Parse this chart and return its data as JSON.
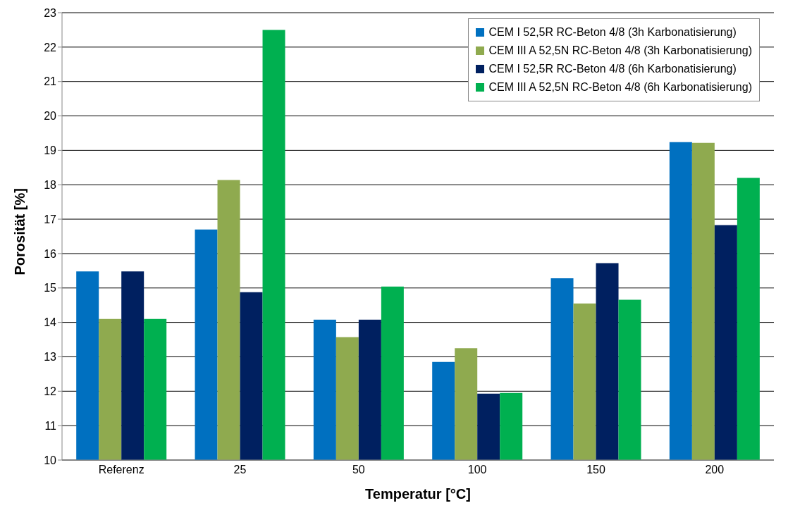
{
  "chart_data": {
    "type": "bar",
    "xlabel": "Temperatur [°C]",
    "ylabel": "Porosität [%]",
    "categories": [
      "Referenz",
      "25",
      "50",
      "100",
      "150",
      "200"
    ],
    "series": [
      {
        "name": "CEM I 52,5R RC-Beton 4/8 (3h Karbonatisierung)",
        "color": "#0070c0",
        "values": [
          15.48,
          16.7,
          14.08,
          12.85,
          15.28,
          19.24
        ]
      },
      {
        "name": "CEM III A 52,5N RC-Beton 4/8 (3h Karbonatisierung)",
        "color": "#8faa4f",
        "values": [
          14.1,
          18.14,
          13.57,
          13.25,
          14.55,
          19.22
        ]
      },
      {
        "name": "CEM I 52,5R RC-Beton 4/8 (6h Karbonatisierung)",
        "color": "#002060",
        "values": [
          15.48,
          14.88,
          14.08,
          11.93,
          15.72,
          16.83
        ]
      },
      {
        "name": "CEM III A 52,5N RC-Beton 4/8 (6h Karbonatisierung)",
        "color": "#00b050",
        "values": [
          14.1,
          22.5,
          15.04,
          11.95,
          14.66,
          18.2
        ]
      }
    ],
    "ylim": [
      10,
      23
    ],
    "yticks": [
      10,
      11,
      12,
      13,
      14,
      15,
      16,
      17,
      18,
      19,
      20,
      21,
      22,
      23
    ],
    "grid": "y",
    "legend": "top right"
  }
}
